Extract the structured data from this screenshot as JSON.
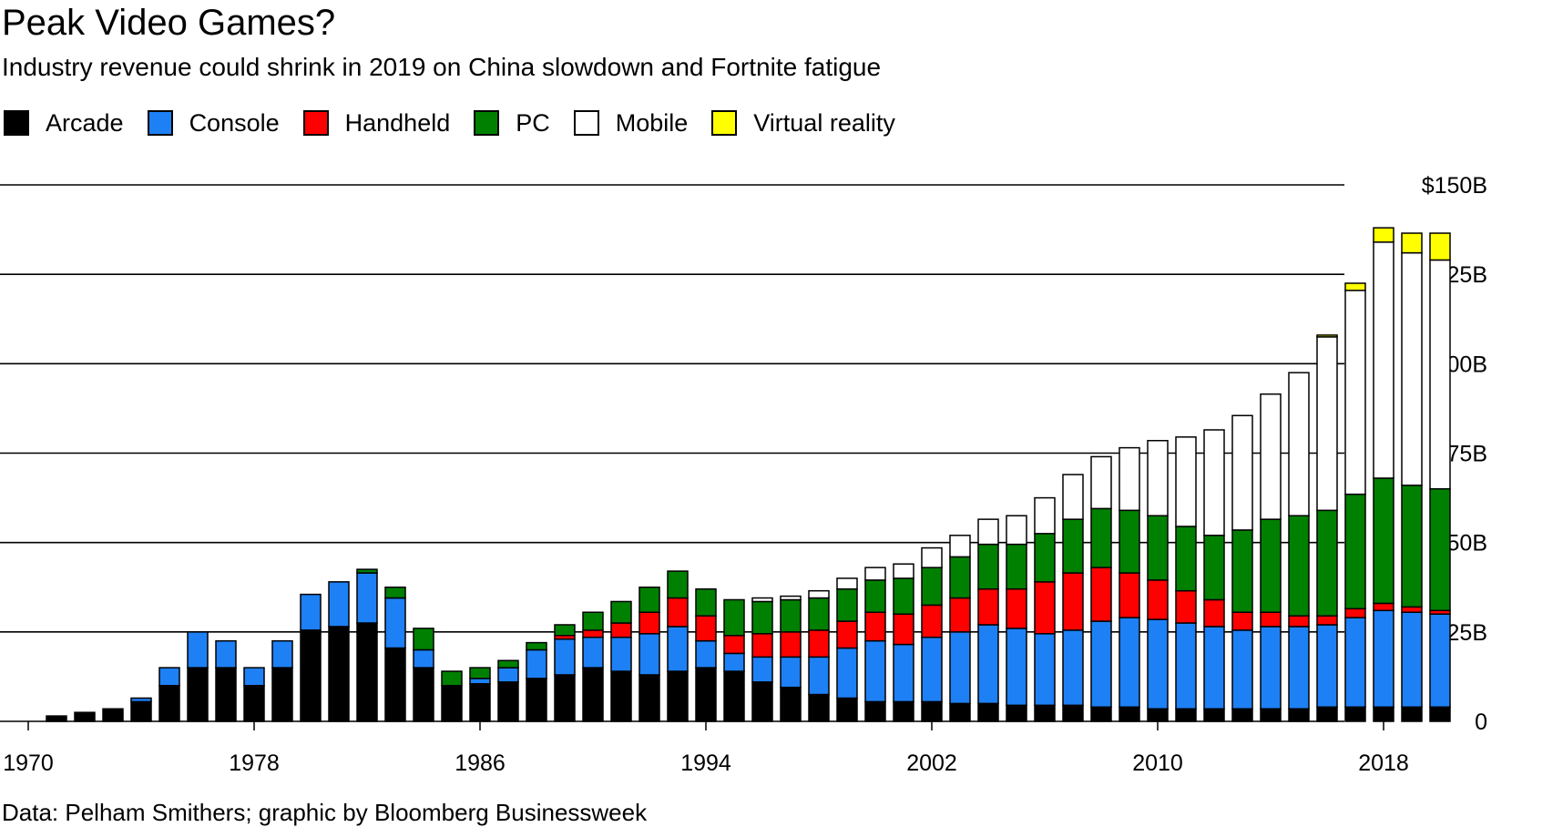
{
  "chart_data": {
    "type": "bar",
    "stacked": true,
    "title": "Peak Video Games?",
    "subtitle": "Industry revenue could shrink in 2019 on China slowdown and Fortnite fatigue",
    "source": "Data: Pelham Smithers; graphic by Bloomberg Businessweek",
    "legend_position": "top-left",
    "grid": true,
    "ylim": [
      0,
      150
    ],
    "y_ticks": [
      0,
      25,
      50,
      75,
      100,
      125,
      150
    ],
    "y_tick_labels": [
      "0",
      "25B",
      "50B",
      "75B",
      "100B",
      "125B",
      "$150B"
    ],
    "x_tick_labels": [
      "1970",
      "1978",
      "1986",
      "1994",
      "2002",
      "2010",
      "2018"
    ],
    "x_tick_years": [
      1970,
      1978,
      1986,
      1994,
      2002,
      2010,
      2018
    ],
    "categories": [
      1971,
      1972,
      1973,
      1974,
      1975,
      1976,
      1977,
      1978,
      1979,
      1980,
      1981,
      1982,
      1983,
      1984,
      1985,
      1986,
      1987,
      1988,
      1989,
      1990,
      1991,
      1992,
      1993,
      1994,
      1995,
      1996,
      1997,
      1998,
      1999,
      2000,
      2001,
      2002,
      2003,
      2004,
      2005,
      2006,
      2007,
      2008,
      2009,
      2010,
      2011,
      2012,
      2013,
      2014,
      2015,
      2016,
      2017,
      2018,
      2019,
      2020
    ],
    "series": [
      {
        "name": "Arcade",
        "color": "#000000",
        "values": [
          1.5,
          2.5,
          3.5,
          5.5,
          10,
          15,
          15,
          10,
          15,
          25.5,
          26.5,
          27.5,
          20.5,
          15,
          10,
          10.5,
          11,
          12,
          13,
          15,
          14,
          13,
          14,
          15,
          14,
          11,
          9.5,
          7.5,
          6.5,
          5.5,
          5.5,
          5.5,
          5,
          5,
          4.5,
          4.5,
          4.5,
          4,
          4,
          3.5,
          3.5,
          3.5,
          3.5,
          3.5,
          3.5,
          4,
          4,
          4,
          4,
          4
        ]
      },
      {
        "name": "Console",
        "color": "#1e80f5",
        "values": [
          0,
          0,
          0,
          1,
          5,
          10,
          7.5,
          5,
          7.5,
          10,
          12.5,
          14,
          14,
          5,
          0,
          1.5,
          4,
          8,
          10,
          8.5,
          9.5,
          11.5,
          12.5,
          7.5,
          5,
          7,
          8.5,
          10.5,
          14,
          17,
          16,
          18,
          20,
          22,
          21.5,
          20,
          21,
          24,
          25,
          25,
          24,
          23,
          22,
          23,
          23,
          23,
          25,
          27,
          26.5,
          26
        ]
      },
      {
        "name": "Handheld",
        "color": "#ff0000",
        "values": [
          0,
          0,
          0,
          0,
          0,
          0,
          0,
          0,
          0,
          0,
          0,
          0,
          0,
          0,
          0,
          0,
          0,
          0,
          1,
          2,
          4,
          6,
          8,
          7,
          5,
          6.5,
          7,
          7.5,
          7.5,
          8,
          8.5,
          9,
          9.5,
          10,
          11,
          14.5,
          16,
          15,
          12.5,
          11,
          9,
          7.5,
          5,
          4,
          3,
          2.5,
          2.5,
          2,
          1.5,
          1
        ]
      },
      {
        "name": "PC",
        "color": "#008000",
        "values": [
          0,
          0,
          0,
          0,
          0,
          0,
          0,
          0,
          0,
          0,
          0,
          1,
          3,
          6,
          4,
          3,
          2,
          2,
          3,
          5,
          6,
          7,
          7.5,
          7.5,
          10,
          9,
          9,
          9,
          9,
          9,
          10,
          10.5,
          11.5,
          12.5,
          12.5,
          13.5,
          15,
          16.5,
          17.5,
          18,
          18,
          18,
          23,
          26,
          28,
          29.5,
          32,
          35,
          34,
          34
        ]
      },
      {
        "name": "Mobile",
        "color": "#ffffff",
        "values": [
          0,
          0,
          0,
          0,
          0,
          0,
          0,
          0,
          0,
          0,
          0,
          0,
          0,
          0,
          0,
          0,
          0,
          0,
          0,
          0,
          0,
          0,
          0,
          0,
          0,
          1,
          1,
          2,
          3,
          3.5,
          4,
          5.5,
          6,
          7,
          8,
          10,
          12.5,
          14.5,
          17.5,
          21,
          25,
          29.5,
          32,
          35,
          40,
          48.5,
          57,
          66,
          65,
          64
        ]
      },
      {
        "name": "Virtual reality",
        "color": "#ffff00",
        "values": [
          0,
          0,
          0,
          0,
          0,
          0,
          0,
          0,
          0,
          0,
          0,
          0,
          0,
          0,
          0,
          0,
          0,
          0,
          0,
          0,
          0,
          0,
          0,
          0,
          0,
          0,
          0,
          0,
          0,
          0,
          0,
          0,
          0,
          0,
          0,
          0,
          0,
          0,
          0,
          0,
          0,
          0,
          0,
          0,
          0,
          0.5,
          2,
          4,
          5.5,
          7.5
        ]
      }
    ]
  }
}
